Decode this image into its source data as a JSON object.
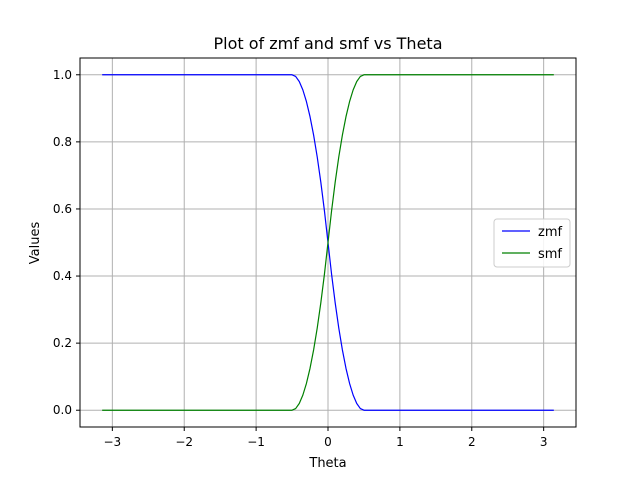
{
  "chart_data": {
    "type": "line",
    "title": "Plot of zmf and smf vs Theta",
    "xlabel": "Theta",
    "ylabel": "Values",
    "xlim": [
      -3.45,
      3.45
    ],
    "ylim": [
      -0.05,
      1.05
    ],
    "x_ticks": [
      -3,
      -2,
      -1,
      0,
      1,
      2,
      3
    ],
    "x_tick_labels": [
      "−3",
      "−2",
      "−1",
      "0",
      "1",
      "2",
      "3"
    ],
    "y_ticks": [
      0.0,
      0.2,
      0.4,
      0.6,
      0.8,
      1.0
    ],
    "y_tick_labels": [
      "0.0",
      "0.2",
      "0.4",
      "0.6",
      "0.8",
      "1.0"
    ],
    "grid": true,
    "legend_position": "center-right",
    "x": [
      -3.1416,
      -0.5,
      -0.45,
      -0.4,
      -0.35,
      -0.3,
      -0.25,
      -0.2,
      -0.15,
      -0.1,
      -0.05,
      0,
      0.05,
      0.1,
      0.15,
      0.2,
      0.25,
      0.3,
      0.35,
      0.4,
      0.45,
      0.5,
      3.1416
    ],
    "series": [
      {
        "name": "zmf",
        "color": "#0000ff",
        "values": [
          1.0,
          1.0,
          0.995,
          0.98,
          0.955,
          0.92,
          0.875,
          0.82,
          0.755,
          0.68,
          0.595,
          0.5,
          0.405,
          0.32,
          0.245,
          0.18,
          0.125,
          0.08,
          0.045,
          0.02,
          0.005,
          0.0,
          0.0
        ]
      },
      {
        "name": "smf",
        "color": "#008000",
        "values": [
          0.0,
          0.0,
          0.005,
          0.02,
          0.045,
          0.08,
          0.125,
          0.18,
          0.245,
          0.32,
          0.405,
          0.5,
          0.595,
          0.68,
          0.755,
          0.82,
          0.875,
          0.92,
          0.955,
          0.98,
          0.995,
          1.0,
          1.0
        ]
      }
    ]
  }
}
